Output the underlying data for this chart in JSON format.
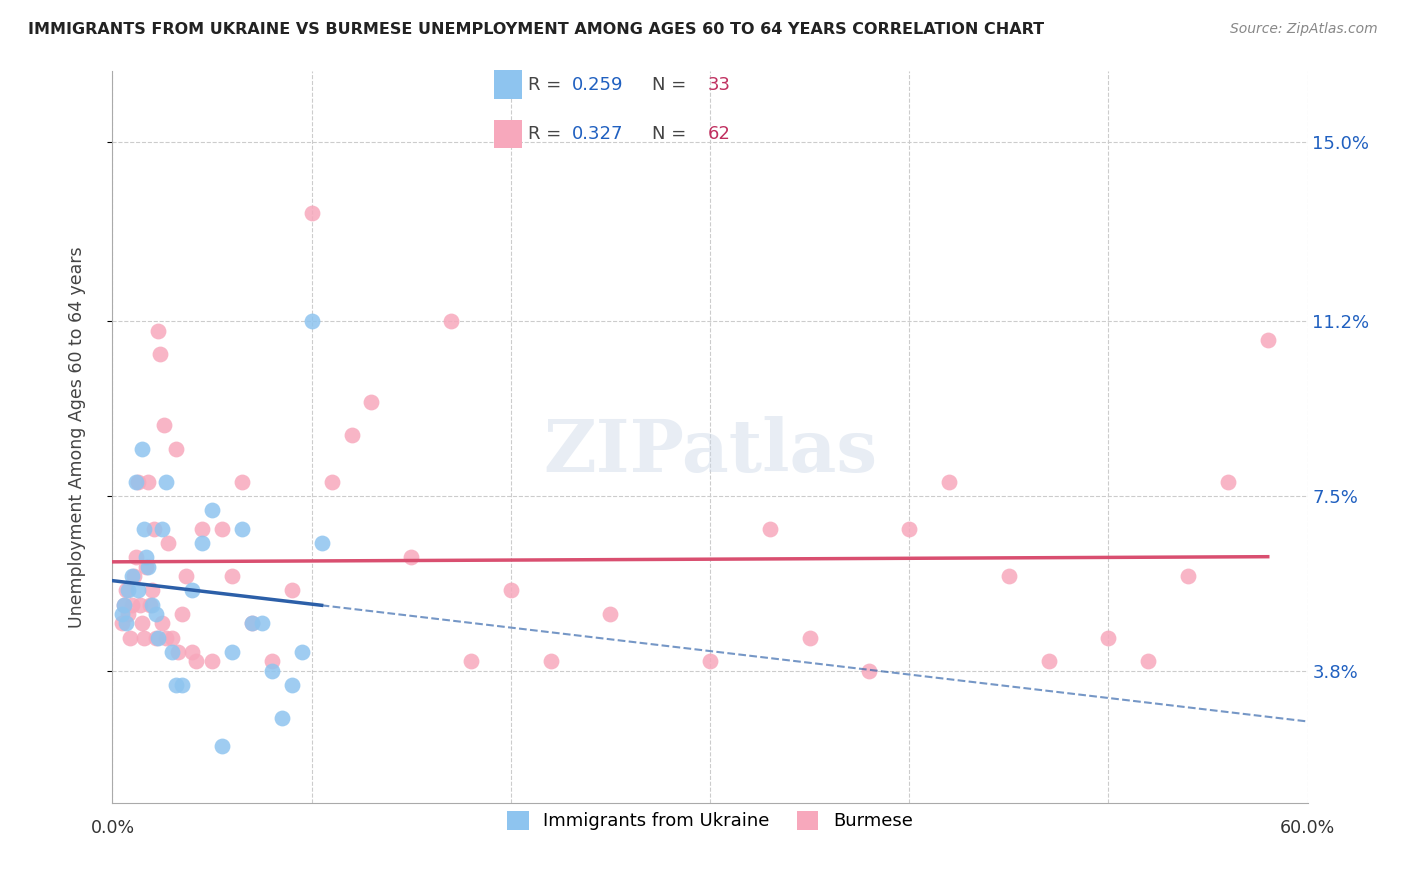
{
  "title": "IMMIGRANTS FROM UKRAINE VS BURMESE UNEMPLOYMENT AMONG AGES 60 TO 64 YEARS CORRELATION CHART",
  "source": "Source: ZipAtlas.com",
  "ylabel": "Unemployment Among Ages 60 to 64 years",
  "yticks": [
    3.8,
    7.5,
    11.2,
    15.0
  ],
  "ytick_labels": [
    "3.8%",
    "7.5%",
    "11.2%",
    "15.0%"
  ],
  "xmin": 0.0,
  "xmax": 60.0,
  "ymin": 1.0,
  "ymax": 16.5,
  "ukraine_color": "#8ec4ef",
  "burmese_color": "#f7a8bc",
  "ukraine_line_color": "#2c5fa8",
  "burmese_line_color": "#d94f70",
  "ukraine_R": "0.259",
  "ukraine_N": "33",
  "burmese_R": "0.327",
  "burmese_N": "62",
  "R_label_color": "#555555",
  "R_value_color": "#2060c0",
  "N_label_color": "#555555",
  "N_value_color": "#c03060",
  "watermark": "ZIPatlas",
  "legend_ukraine_label": "Immigrants from Ukraine",
  "legend_burmese_label": "Burmese",
  "ukraine_x": [
    0.5,
    0.6,
    0.7,
    0.8,
    1.0,
    1.2,
    1.3,
    1.5,
    1.6,
    1.7,
    1.8,
    2.0,
    2.2,
    2.3,
    2.5,
    2.7,
    3.0,
    3.2,
    3.5,
    4.0,
    4.5,
    5.0,
    5.5,
    6.0,
    6.5,
    7.0,
    7.5,
    8.0,
    8.5,
    9.0,
    9.5,
    10.0,
    10.5
  ],
  "ukraine_y": [
    5.0,
    5.2,
    4.8,
    5.5,
    5.8,
    7.8,
    5.5,
    8.5,
    6.8,
    6.2,
    6.0,
    5.2,
    5.0,
    4.5,
    6.8,
    7.8,
    4.2,
    3.5,
    3.5,
    5.5,
    6.5,
    7.2,
    2.2,
    4.2,
    6.8,
    4.8,
    4.8,
    3.8,
    2.8,
    3.5,
    4.2,
    11.2,
    6.5
  ],
  "burmese_x": [
    0.5,
    0.6,
    0.7,
    0.8,
    0.9,
    1.0,
    1.1,
    1.2,
    1.3,
    1.4,
    1.5,
    1.6,
    1.7,
    1.8,
    1.9,
    2.0,
    2.1,
    2.2,
    2.3,
    2.4,
    2.5,
    2.6,
    2.7,
    2.8,
    3.0,
    3.2,
    3.3,
    3.5,
    3.7,
    4.0,
    4.2,
    4.5,
    5.0,
    5.5,
    6.0,
    6.5,
    7.0,
    8.0,
    9.0,
    10.0,
    11.0,
    12.0,
    13.0,
    15.0,
    17.0,
    18.0,
    20.0,
    22.0,
    25.0,
    30.0,
    33.0,
    35.0,
    38.0,
    40.0,
    42.0,
    45.0,
    47.0,
    50.0,
    52.0,
    54.0,
    56.0,
    58.0
  ],
  "burmese_y": [
    4.8,
    5.2,
    5.5,
    5.0,
    4.5,
    5.2,
    5.8,
    6.2,
    7.8,
    5.2,
    4.8,
    4.5,
    6.0,
    7.8,
    5.2,
    5.5,
    6.8,
    4.5,
    11.0,
    10.5,
    4.8,
    9.0,
    4.5,
    6.5,
    4.5,
    8.5,
    4.2,
    5.0,
    5.8,
    4.2,
    4.0,
    6.8,
    4.0,
    6.8,
    5.8,
    7.8,
    4.8,
    4.0,
    5.5,
    13.5,
    7.8,
    8.8,
    9.5,
    6.2,
    11.2,
    4.0,
    5.5,
    4.0,
    5.0,
    4.0,
    6.8,
    4.5,
    3.8,
    6.8,
    7.8,
    5.8,
    4.0,
    4.5,
    4.0,
    5.8,
    7.8,
    10.8
  ]
}
